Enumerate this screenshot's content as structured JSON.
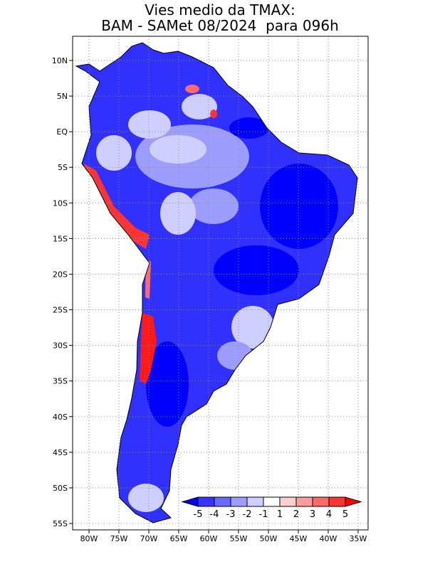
{
  "title": {
    "line1": "Vies medio da TMAX:",
    "line2": "BAM - SAMet 08/2024  para 096h"
  },
  "map": {
    "region": "South America",
    "lon_range": [
      -82,
      -34
    ],
    "lat_range": [
      -56,
      13
    ],
    "lat_labels": [
      "10N",
      "5N",
      "EQ",
      "5S",
      "10S",
      "15S",
      "20S",
      "25S",
      "30S",
      "35S",
      "40S",
      "45S",
      "50S",
      "55S"
    ],
    "lat_values": [
      10,
      5,
      0,
      -5,
      -10,
      -15,
      -20,
      -25,
      -30,
      -35,
      -40,
      -45,
      -50,
      -55
    ],
    "lon_labels": [
      "80W",
      "75W",
      "70W",
      "65W",
      "60W",
      "55W",
      "50W",
      "45W",
      "40W",
      "35W"
    ],
    "lon_values": [
      -80,
      -75,
      -70,
      -65,
      -60,
      -55,
      -50,
      -45,
      -40,
      -35
    ]
  },
  "colorbar": {
    "labels": [
      "-5",
      "-4",
      "-3",
      "-2",
      "-1",
      "1",
      "2",
      "3",
      "4",
      "5"
    ],
    "colors": [
      "#0000ff",
      "#3535ff",
      "#6a6aff",
      "#9d9dff",
      "#cfcfff",
      "#ffffff",
      "#ffcfcf",
      "#ff9d9d",
      "#ff6a6a",
      "#ff3535",
      "#ff0000"
    ]
  }
}
